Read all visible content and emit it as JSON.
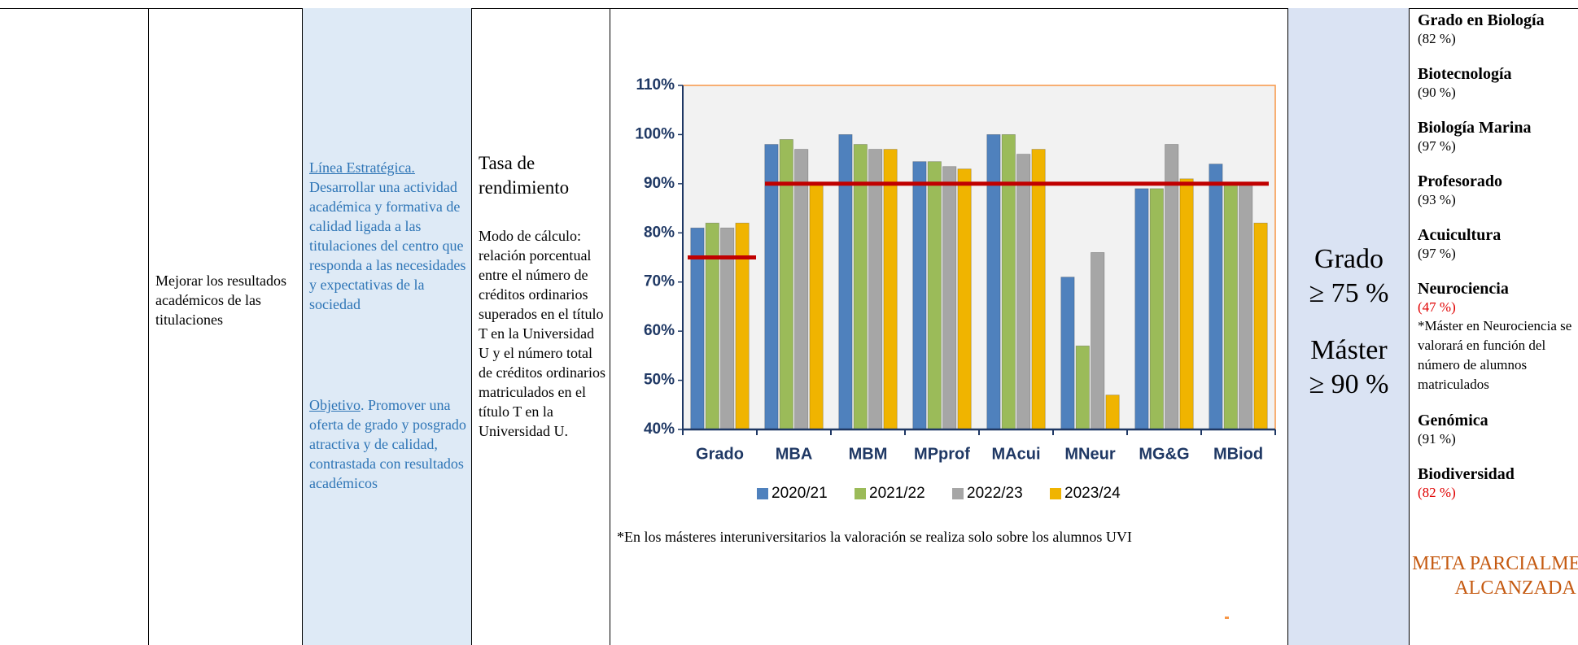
{
  "objective": "Mejorar los resultados académicos de las titulaciones",
  "strategy": {
    "line_label": "Línea Estratégica.",
    "line_text": "Desarrollar una actividad académica y formativa de calidad ligada a las titulaciones del centro que responda a las necesidades y expectativas de la sociedad",
    "objective_label": "Objetivo",
    "objective_text": ". Promover una oferta de grado y posgrado atractiva y de calidad, contrastada con resultados académicos"
  },
  "indicator": {
    "name": "Tasa de rendimiento",
    "method": "Modo de cálculo: relación porcentual entre el número de créditos ordinarios superados en el título T en la Universidad U y el número total de créditos ordinarios matriculados en el título T en la Universidad U."
  },
  "chart_data": {
    "type": "bar",
    "categories": [
      "Grado",
      "MBA",
      "MBM",
      "MPprof",
      "MAcui",
      "MNeur",
      "MG&G",
      "MBiod"
    ],
    "series": [
      {
        "name": "2020/21",
        "color": "#4f81bd",
        "values": [
          81,
          98,
          100,
          94.5,
          100,
          71,
          89,
          94
        ]
      },
      {
        "name": "2021/22",
        "color": "#9bbb59",
        "values": [
          82,
          99,
          98,
          94.5,
          100,
          57,
          89,
          90
        ]
      },
      {
        "name": "2022/23",
        "color": "#a6a6a6",
        "values": [
          81,
          97,
          97,
          93.5,
          96,
          76,
          98,
          90
        ]
      },
      {
        "name": "2023/24",
        "color": "#f0b400",
        "values": [
          82,
          90,
          97,
          93,
          97,
          47,
          91,
          82
        ]
      }
    ],
    "ylim": [
      40,
      110
    ],
    "yticks": [
      {
        "value": 40,
        "label": "40%"
      },
      {
        "value": 50,
        "label": "50%"
      },
      {
        "value": 60,
        "label": "60%"
      },
      {
        "value": 70,
        "label": "70%"
      },
      {
        "value": 80,
        "label": "80%"
      },
      {
        "value": 90,
        "label": "90%"
      },
      {
        "value": 100,
        "label": "100%"
      },
      {
        "value": 110,
        "label": "110%"
      }
    ],
    "reference_lines": [
      {
        "value": 75,
        "color": "#c00000"
      },
      {
        "value": 90,
        "color": "#c00000"
      }
    ],
    "note": "*En los másteres interuniversitarios la valoración se realiza solo sobre los alumnos UVI"
  },
  "targets": [
    {
      "level": "Grado",
      "threshold": "≥ 75 %"
    },
    {
      "level": "Máster",
      "threshold": "≥ 90 %"
    }
  ],
  "results": [
    {
      "name": "Grado en Biología",
      "value": "(82 %)",
      "highlight": false
    },
    {
      "name": "Biotecnología",
      "value": "(90 %)",
      "highlight": false
    },
    {
      "name": "Biología Marina",
      "value": "(97 %)",
      "highlight": false
    },
    {
      "name": "Profesorado",
      "value": "(93 %)",
      "highlight": false
    },
    {
      "name": "Acuicultura",
      "value": "(97 %)",
      "highlight": false
    },
    {
      "name": "Neurociencia",
      "value": "(47 %)",
      "highlight": true,
      "note": "*Máster en Neurociencia se valorará en función del número de alumnos matriculados"
    },
    {
      "name": "Genómica",
      "value": "(91 %)",
      "highlight": false
    },
    {
      "name": "Biodiversidad",
      "value": "(82 %)",
      "highlight": true
    }
  ],
  "status": "META PARCIALMENTE ALCANZADA"
}
